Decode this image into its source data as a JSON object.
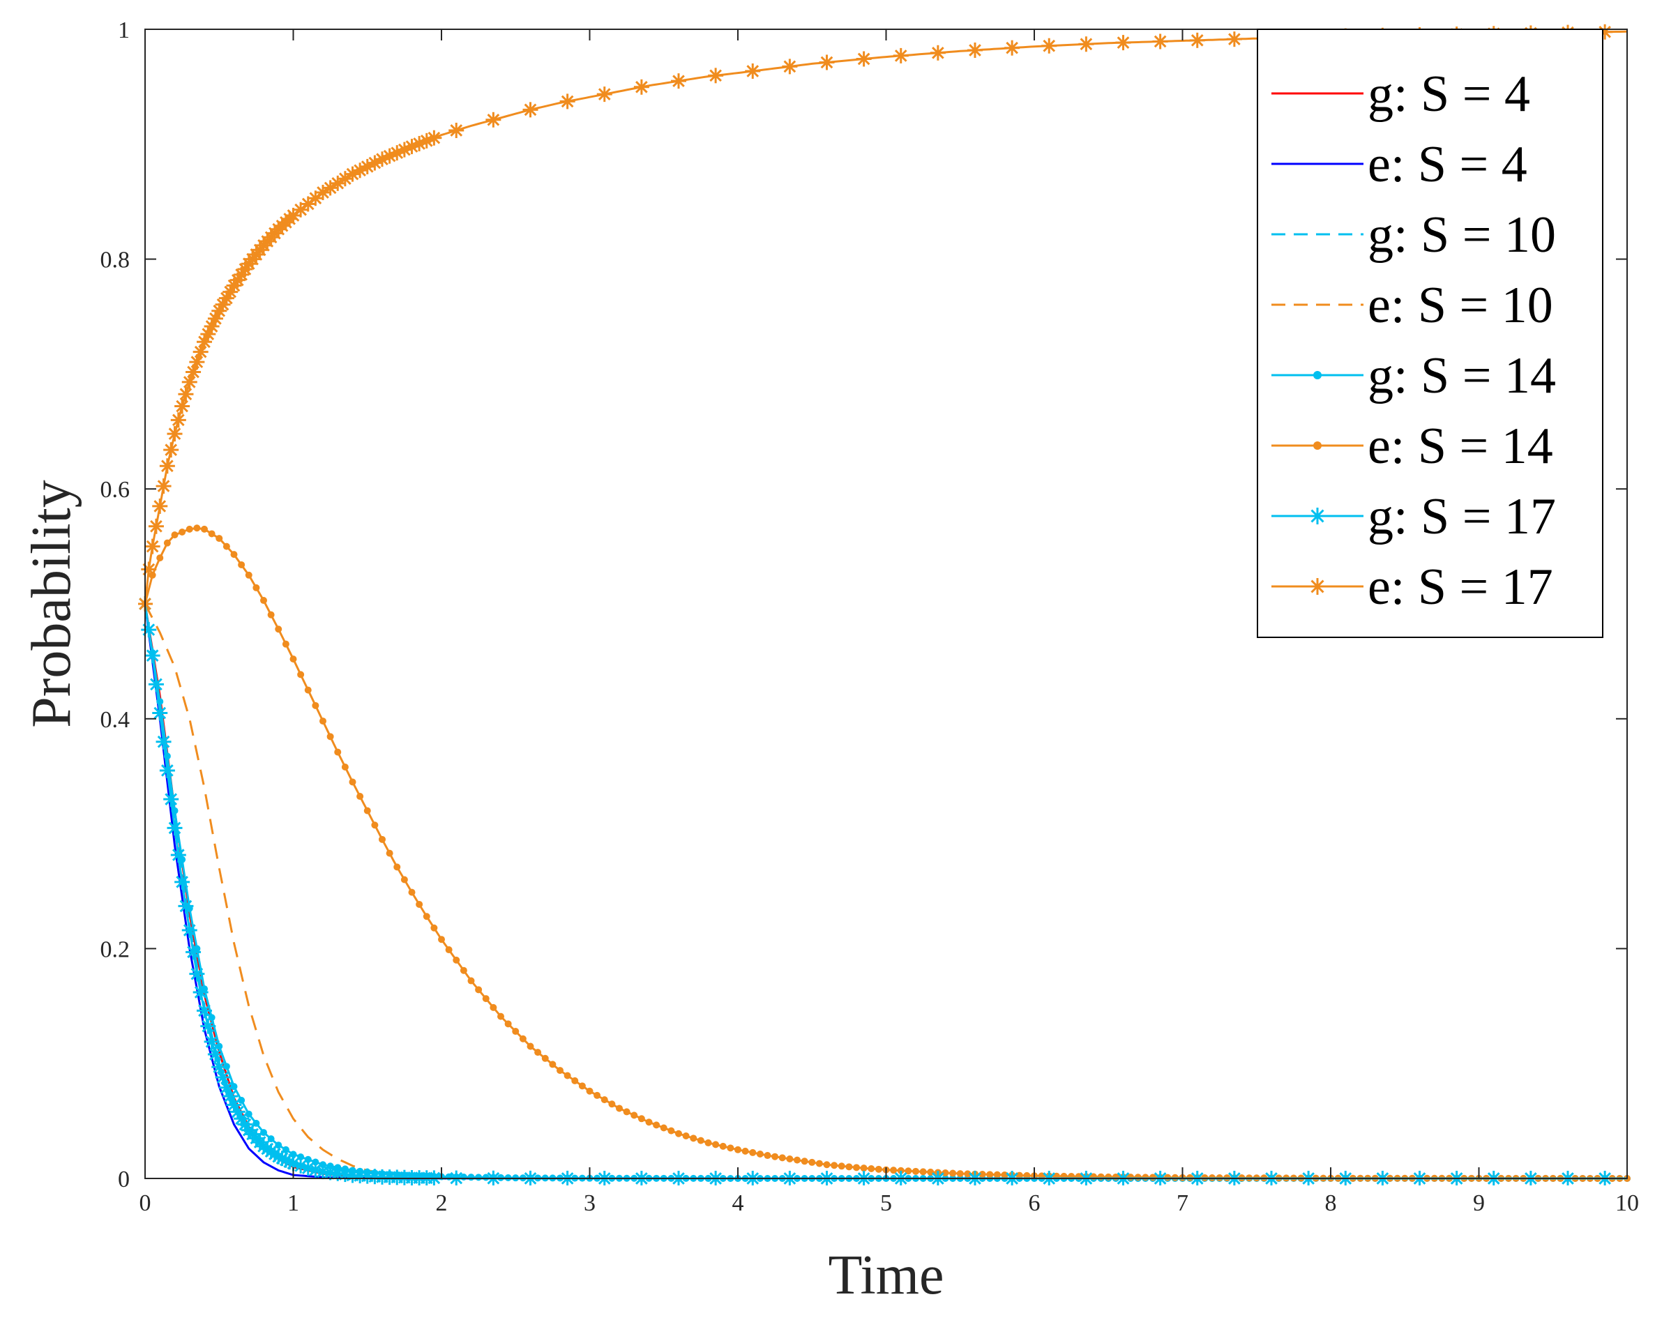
{
  "chart_data": {
    "type": "line",
    "title": "",
    "xlabel": "Time",
    "ylabel": "Probability",
    "xlim": [
      0,
      10
    ],
    "ylim": [
      0,
      1
    ],
    "xticks": [
      "0",
      "1",
      "2",
      "3",
      "4",
      "5",
      "6",
      "7",
      "8",
      "9",
      "10"
    ],
    "yticks": [
      "0",
      "0.2",
      "0.4",
      "0.6",
      "0.8",
      "1"
    ],
    "grid": false,
    "legend_position": "top-right",
    "colors": {
      "red": "#FF0000",
      "blue": "#0000FF",
      "cyan": "#00BFEF",
      "orange": "#F08C1E"
    },
    "series": [
      {
        "name": "g: S = 4",
        "color": "#FF0000",
        "line": "solid",
        "marker": "none",
        "x": [
          0,
          0.1,
          0.2,
          0.3,
          0.4,
          0.5,
          0.6,
          0.7,
          0.8,
          0.9,
          1.0,
          1.2,
          1.4,
          1.6,
          1.8,
          2.0,
          3.0,
          4.0,
          6.0,
          8.0,
          10.0
        ],
        "y": [
          0.5,
          0.42,
          0.32,
          0.23,
          0.16,
          0.11,
          0.07,
          0.045,
          0.028,
          0.017,
          0.01,
          0.004,
          0.0015,
          0.0006,
          0.0002,
          0.0001,
          0,
          0,
          0,
          0,
          0
        ]
      },
      {
        "name": "e: S = 4",
        "color": "#0000FF",
        "line": "solid",
        "marker": "none",
        "x": [
          0,
          0.1,
          0.2,
          0.3,
          0.4,
          0.5,
          0.6,
          0.7,
          0.8,
          0.9,
          1.0,
          1.2,
          1.4,
          1.6,
          1.8,
          2.0,
          3.0,
          4.0,
          6.0,
          8.0,
          10.0
        ],
        "y": [
          0.5,
          0.4,
          0.29,
          0.2,
          0.13,
          0.08,
          0.047,
          0.026,
          0.014,
          0.007,
          0.003,
          0.001,
          0.0003,
          0.0001,
          0,
          0,
          0,
          0,
          0,
          0,
          0
        ]
      },
      {
        "name": "g: S = 10",
        "color": "#00BFEF",
        "line": "dashed",
        "marker": "none",
        "x": [
          0,
          0.1,
          0.2,
          0.3,
          0.4,
          0.5,
          0.6,
          0.7,
          0.8,
          0.9,
          1.0,
          1.2,
          1.4,
          1.6,
          1.8,
          2.0,
          3.0,
          4.0,
          6.0,
          8.0,
          10.0
        ],
        "y": [
          0.5,
          0.41,
          0.31,
          0.22,
          0.15,
          0.1,
          0.065,
          0.042,
          0.027,
          0.017,
          0.011,
          0.005,
          0.002,
          0.0008,
          0.0003,
          0.0001,
          0,
          0,
          0,
          0,
          0
        ]
      },
      {
        "name": "e: S = 10",
        "color": "#F08C1E",
        "line": "dashed",
        "marker": "none",
        "x": [
          0,
          0.1,
          0.2,
          0.3,
          0.4,
          0.5,
          0.6,
          0.7,
          0.8,
          0.9,
          1.0,
          1.1,
          1.2,
          1.3,
          1.4,
          1.5,
          1.6,
          1.7,
          1.8,
          2.0,
          2.5,
          3.0,
          4.0,
          6.0,
          8.0,
          10.0
        ],
        "y": [
          0.5,
          0.475,
          0.445,
          0.4,
          0.34,
          0.27,
          0.205,
          0.15,
          0.107,
          0.075,
          0.052,
          0.036,
          0.025,
          0.017,
          0.011,
          0.007,
          0.0045,
          0.003,
          0.002,
          0.0008,
          0.0001,
          0,
          0,
          0,
          0,
          0
        ]
      },
      {
        "name": "g: S = 14",
        "color": "#00BFEF",
        "line": "solid",
        "marker": "dot",
        "x": [
          0,
          0.1,
          0.2,
          0.3,
          0.4,
          0.5,
          0.6,
          0.7,
          0.8,
          0.9,
          1.0,
          1.2,
          1.4,
          1.6,
          1.8,
          2.0,
          2.5,
          3.0,
          4.0,
          6.0,
          8.0,
          10.0
        ],
        "y": [
          0.5,
          0.415,
          0.32,
          0.235,
          0.165,
          0.115,
          0.08,
          0.056,
          0.04,
          0.029,
          0.021,
          0.012,
          0.007,
          0.004,
          0.0025,
          0.0015,
          0.0005,
          0.0002,
          0,
          0,
          0,
          0
        ]
      },
      {
        "name": "e: S = 14",
        "color": "#F08C1E",
        "line": "solid",
        "marker": "dot",
        "x": [
          0,
          0.05,
          0.1,
          0.15,
          0.2,
          0.3,
          0.35,
          0.4,
          0.5,
          0.6,
          0.7,
          0.8,
          0.9,
          1.0,
          1.1,
          1.2,
          1.3,
          1.4,
          1.5,
          1.6,
          1.7,
          1.8,
          1.9,
          2.0,
          2.2,
          2.4,
          2.6,
          2.8,
          3.0,
          3.2,
          3.4,
          3.6,
          3.8,
          4.0,
          4.2,
          4.4,
          4.6,
          4.8,
          5.0,
          5.5,
          6.0,
          6.5,
          7.0,
          8.0,
          9.0,
          10.0
        ],
        "y": [
          0.5,
          0.525,
          0.54,
          0.553,
          0.56,
          0.565,
          0.566,
          0.565,
          0.557,
          0.543,
          0.525,
          0.503,
          0.478,
          0.452,
          0.425,
          0.398,
          0.371,
          0.345,
          0.32,
          0.295,
          0.271,
          0.249,
          0.228,
          0.208,
          0.172,
          0.141,
          0.115,
          0.094,
          0.076,
          0.061,
          0.049,
          0.039,
          0.031,
          0.025,
          0.02,
          0.016,
          0.012,
          0.0095,
          0.0075,
          0.0042,
          0.0023,
          0.0013,
          0.0007,
          0.0002,
          0.0001,
          0
        ]
      },
      {
        "name": "g: S = 17",
        "color": "#00BFEF",
        "line": "solid",
        "marker": "star",
        "x": [
          0,
          0.05,
          0.1,
          0.15,
          0.2,
          0.25,
          0.3,
          0.35,
          0.4,
          0.45,
          0.5,
          0.55,
          0.6,
          0.65,
          0.7,
          0.8,
          0.9,
          1.0,
          1.1,
          1.2,
          1.4,
          1.6,
          1.8,
          2.0,
          2.5,
          3.0,
          4.0,
          5.0,
          6.0,
          8.0,
          10.0
        ],
        "y": [
          0.5,
          0.455,
          0.405,
          0.355,
          0.305,
          0.258,
          0.216,
          0.178,
          0.146,
          0.119,
          0.097,
          0.079,
          0.064,
          0.052,
          0.042,
          0.028,
          0.019,
          0.013,
          0.009,
          0.006,
          0.0028,
          0.0013,
          0.0006,
          0.0003,
          0.0001,
          0,
          0,
          0,
          0,
          0,
          0
        ]
      },
      {
        "name": "e: S = 17",
        "color": "#F08C1E",
        "line": "solid",
        "marker": "star",
        "x": [
          0,
          0.025,
          0.05,
          0.1,
          0.15,
          0.2,
          0.25,
          0.3,
          0.4,
          0.5,
          0.6,
          0.7,
          0.8,
          0.9,
          1.0,
          1.2,
          1.4,
          1.6,
          1.8,
          2.0,
          2.2,
          2.4,
          2.6,
          2.8,
          3.0,
          3.2,
          3.4,
          3.6,
          3.8,
          4.0,
          4.5,
          5.0,
          5.5,
          6.0,
          6.5,
          7.0,
          7.5,
          8.0,
          8.5,
          9.0,
          9.5,
          10.0
        ],
        "y": [
          0.5,
          0.53,
          0.55,
          0.585,
          0.62,
          0.648,
          0.672,
          0.693,
          0.728,
          0.755,
          0.777,
          0.796,
          0.812,
          0.826,
          0.838,
          0.858,
          0.874,
          0.887,
          0.898,
          0.908,
          0.916,
          0.923,
          0.93,
          0.936,
          0.941,
          0.946,
          0.951,
          0.955,
          0.959,
          0.962,
          0.97,
          0.976,
          0.981,
          0.985,
          0.988,
          0.99,
          0.992,
          0.994,
          0.995,
          0.996,
          0.997,
          0.998
        ]
      }
    ]
  }
}
